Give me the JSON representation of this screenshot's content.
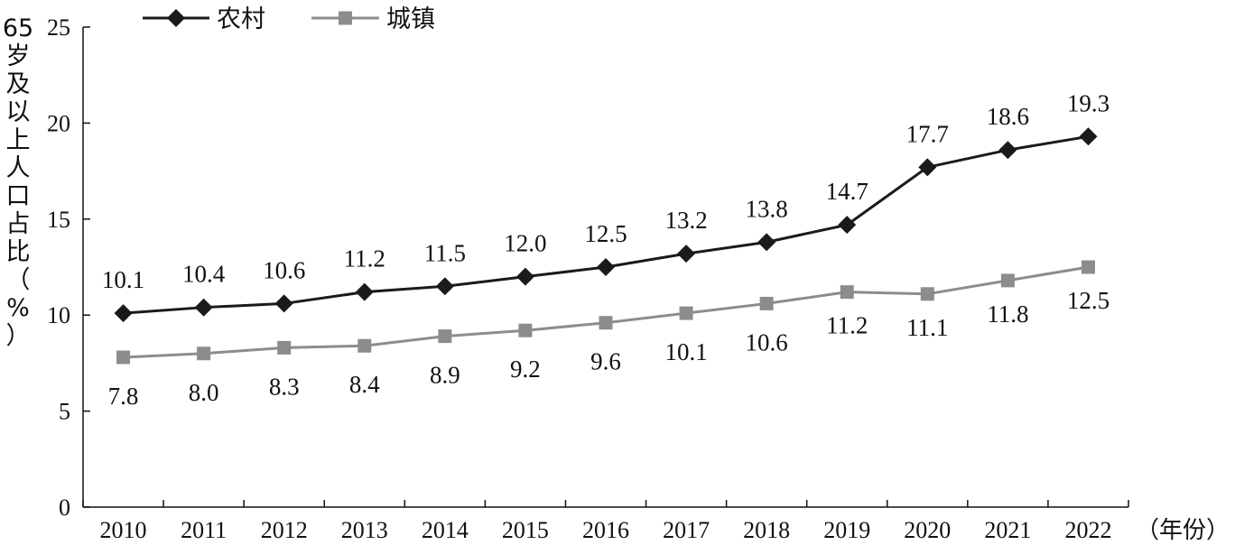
{
  "chart_data": {
    "type": "line",
    "x": [
      "2010",
      "2011",
      "2012",
      "2013",
      "2014",
      "2015",
      "2016",
      "2017",
      "2018",
      "2019",
      "2020",
      "2021",
      "2022"
    ],
    "series": [
      {
        "name": "农村",
        "color": "#1a1a1a",
        "marker": "diamond",
        "values": [
          10.1,
          10.4,
          10.6,
          11.2,
          11.5,
          12.0,
          12.5,
          13.2,
          13.8,
          14.7,
          17.7,
          18.6,
          19.3
        ],
        "labels": [
          "10.1",
          "10.4",
          "10.6",
          "11.2",
          "11.5",
          "12.0",
          "12.5",
          "13.2",
          "13.8",
          "14.7",
          "17.7",
          "18.6",
          "19.3"
        ]
      },
      {
        "name": "城镇",
        "color": "#8c8c8c",
        "marker": "square",
        "values": [
          7.8,
          8.0,
          8.3,
          8.4,
          8.9,
          9.2,
          9.6,
          10.1,
          10.6,
          11.2,
          11.1,
          11.8,
          12.5
        ],
        "labels": [
          "7.8",
          "8.0",
          "8.3",
          "8.4",
          "8.9",
          "9.2",
          "9.6",
          "10.1",
          "10.6",
          "11.2",
          "11.1",
          "11.8",
          "12.5"
        ]
      }
    ],
    "ylim": [
      0,
      25
    ],
    "yticks": [
      "0",
      "5",
      "10",
      "15",
      "20",
      "25"
    ],
    "ylabel": "65岁及以上人口占比（%）",
    "xlabel": "（年份）",
    "legend_position": "top-left"
  }
}
